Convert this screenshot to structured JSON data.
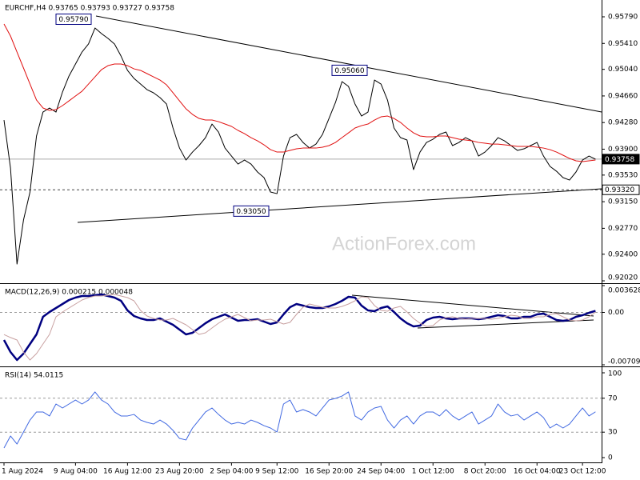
{
  "watermark": "ActionForex.com",
  "chart_data": [
    {
      "type": "line",
      "title": "EURCHF,H4  0.93765 0.93793 0.93727 0.93758",
      "ylim": [
        0.92009,
        0.9603
      ],
      "yticks": [
        {
          "value": 0.9579,
          "label": "0.95790"
        },
        {
          "value": 0.9541,
          "label": "0.95410"
        },
        {
          "value": 0.9504,
          "label": "0.95040"
        },
        {
          "value": 0.9466,
          "label": "0.94660"
        },
        {
          "value": 0.9428,
          "label": "0.94280"
        },
        {
          "value": 0.939,
          "label": "0.93900"
        },
        {
          "value": 0.9353,
          "label": "0.93530"
        },
        {
          "value": 0.9315,
          "label": "0.93150"
        },
        {
          "value": 0.9277,
          "label": "0.92770"
        },
        {
          "value": 0.924,
          "label": "0.92400"
        },
        {
          "value": 0.9202,
          "label": "0.92020"
        }
      ],
      "grid": false,
      "series": [
        {
          "color": "#000000",
          "width": 1,
          "values": [
            0.94316,
            0.93631,
            0.9226,
            0.92888,
            0.93288,
            0.94088,
            0.9443,
            0.94488,
            0.9443,
            0.94716,
            0.94945,
            0.95116,
            0.95287,
            0.95402,
            0.9563,
            0.9555,
            0.95482,
            0.95402,
            0.9523,
            0.95025,
            0.9491,
            0.9483,
            0.9475,
            0.94705,
            0.94636,
            0.94545,
            0.94202,
            0.93916,
            0.93745,
            0.93859,
            0.93951,
            0.94065,
            0.94259,
            0.94145,
            0.93916,
            0.93802,
            0.93688,
            0.93745,
            0.93688,
            0.93574,
            0.93494,
            0.93288,
            0.93265,
            0.93802,
            0.94065,
            0.94111,
            0.93996,
            0.93916,
            0.93973,
            0.94111,
            0.94339,
            0.94568,
            0.94865,
            0.94796,
            0.94545,
            0.94373,
            0.9443,
            0.94887,
            0.9483,
            0.94602,
            0.94202,
            0.94065,
            0.94031,
            0.93608,
            0.93859,
            0.93996,
            0.94042,
            0.94111,
            0.94145,
            0.93951,
            0.93996,
            0.94065,
            0.94019,
            0.93802,
            0.93859,
            0.93951,
            0.94065,
            0.94019,
            0.93951,
            0.93882,
            0.93905,
            0.93951,
            0.93996,
            0.93802,
            0.93654,
            0.93585,
            0.93494,
            0.93459,
            0.93574,
            0.93745,
            0.93802,
            0.93758
          ]
        },
        {
          "color": "#e01010",
          "width": 1,
          "values": [
            0.95687,
            0.95516,
            0.95287,
            0.95059,
            0.9483,
            0.94602,
            0.94488,
            0.94453,
            0.94465,
            0.94522,
            0.9459,
            0.94659,
            0.94727,
            0.9483,
            0.94933,
            0.95036,
            0.95093,
            0.95116,
            0.95116,
            0.95093,
            0.95047,
            0.95025,
            0.94979,
            0.94933,
            0.94887,
            0.94819,
            0.94705,
            0.9459,
            0.94476,
            0.94396,
            0.94339,
            0.94316,
            0.94316,
            0.94293,
            0.94259,
            0.94225,
            0.94168,
            0.94122,
            0.94065,
            0.94019,
            0.93962,
            0.93893,
            0.93859,
            0.93859,
            0.93882,
            0.93905,
            0.93916,
            0.93916,
            0.93916,
            0.93928,
            0.93951,
            0.93996,
            0.94065,
            0.94133,
            0.94202,
            0.94236,
            0.94259,
            0.94316,
            0.94362,
            0.94373,
            0.94339,
            0.94282,
            0.94202,
            0.94133,
            0.94088,
            0.94076,
            0.94076,
            0.94088,
            0.94088,
            0.94065,
            0.94042,
            0.94031,
            0.94019,
            0.93996,
            0.93985,
            0.93973,
            0.93973,
            0.93962,
            0.93951,
            0.93939,
            0.93939,
            0.93939,
            0.93928,
            0.93916,
            0.93893,
            0.93859,
            0.93814,
            0.93768,
            0.93734,
            0.93722,
            0.93734,
            0.93745
          ]
        }
      ],
      "annotations": [
        {
          "value": 0.9579,
          "label": "0.95790"
        },
        {
          "value": 0.9506,
          "label": "0.95060"
        },
        {
          "value": 0.9305,
          "label": "0.93050"
        }
      ],
      "levels": [
        {
          "value": 0.93758,
          "label": "0.93758",
          "style": "solid",
          "highlight": true
        },
        {
          "value": 0.9332,
          "label": "0.93320",
          "style": "dashed",
          "highlight": false
        }
      ]
    },
    {
      "type": "line",
      "title": "MACD(12,26,9) 0.000215 0.000048",
      "ylim": [
        -0.007093,
        0.003628
      ],
      "yticks": [
        0.003628,
        {
          "value": 0,
          "label": "0.00"
        },
        -0.007093
      ],
      "grid": true,
      "series": [
        {
          "color": "#000080",
          "width": 2.5,
          "values": [
            -0.003736,
            -0.005361,
            -0.006444,
            -0.005577,
            -0.004278,
            -0.002978,
            -0.000596,
            5.4e-05,
            0.000596,
            0.001137,
            0.001679,
            0.002004,
            0.00222,
            0.00222,
            0.002328,
            0.002437,
            0.00222,
            0.002004,
            0.00157,
            0.000271,
            -0.000487,
            -0.000812,
            -0.001029,
            -0.001029,
            -0.000812,
            -0.001245,
            -0.001679,
            -0.002328,
            -0.002978,
            -0.002762,
            -0.002112,
            -0.001462,
            -0.000921,
            -0.000596,
            -0.000271,
            -0.000704,
            -0.001137,
            -0.001029,
            -0.001029,
            -0.000921,
            -0.001245,
            -0.00157,
            -0.001354,
            -0.000271,
            0.000704,
            0.001137,
            0.000921,
            0.000704,
            0.000596,
            0.000596,
            0.000812,
            0.001137,
            0.00157,
            0.002112,
            0.002004,
            0.000921,
            0.000271,
            0.000162,
            0.000596,
            0.000812,
            5.4e-05,
            -0.000812,
            -0.001462,
            -0.001895,
            -0.001787,
            -0.001029,
            -0.000704,
            -0.000596,
            -0.000812,
            -0.000921,
            -0.000812,
            -0.000812,
            -0.000812,
            -0.000921,
            -0.000812,
            -0.000596,
            -0.000379,
            -0.000487,
            -0.000812,
            -0.000812,
            -0.000596,
            -0.000596,
            -0.000271,
            -0.000162,
            -0.000596,
            -0.001029,
            -0.001137,
            -0.001029,
            -0.000596,
            -0.000379,
            -5.4e-05,
            0.000215
          ]
        },
        {
          "color": "#c8a0a0",
          "width": 1,
          "values": [
            -0.003,
            -0.0034,
            -0.003736,
            -0.005361,
            -0.006444,
            -0.005577,
            -0.004278,
            -0.002978,
            -0.000596,
            5.4e-05,
            0.000596,
            0.001137,
            0.001679,
            0.002004,
            0.00222,
            0.00222,
            0.002328,
            0.002437,
            0.00222,
            0.002004,
            0.00157,
            0.000271,
            -0.000487,
            -0.000812,
            -0.001029,
            -0.001029,
            -0.000812,
            -0.001245,
            -0.001679,
            -0.002328,
            -0.002978,
            -0.002762,
            -0.002112,
            -0.001462,
            -0.000921,
            -0.000596,
            -0.000271,
            -0.000704,
            -0.001137,
            -0.001029,
            -0.001029,
            -0.000921,
            -0.001245,
            -0.00157,
            -0.001354,
            -0.000271,
            0.000704,
            0.001137,
            0.000921,
            0.000704,
            0.000596,
            0.000596,
            0.000812,
            0.001137,
            0.00157,
            0.002112,
            0.002004,
            0.000921,
            0.000271,
            0.000162,
            0.000596,
            0.000812,
            5.4e-05,
            -0.000812,
            -0.001462,
            -0.001895,
            -0.001787,
            -0.001029,
            -0.000704,
            -0.000596,
            -0.000812,
            -0.000921,
            -0.000812,
            -0.000812,
            -0.000812,
            -0.000921,
            -0.000812,
            -0.000596,
            -0.000379,
            -0.000487,
            -0.000812,
            -0.000812,
            -0.000596,
            -0.000596,
            -0.000271,
            -0.000162,
            -0.000596,
            -0.001029,
            -0.001137,
            -0.001029,
            -0.000596,
            4.8e-05
          ]
        }
      ]
    },
    {
      "type": "line",
      "title": "RSI(14) 54.0115",
      "ylim": [
        0,
        100
      ],
      "yticks": [
        100,
        70,
        30,
        0
      ],
      "grid": true,
      "categories": [
        "1 Aug 2024",
        null,
        null,
        null,
        null,
        null,
        null,
        null,
        null,
        null,
        null,
        "9 Aug 04:00",
        null,
        null,
        null,
        null,
        null,
        null,
        null,
        "16 Aug 12:00",
        null,
        null,
        null,
        null,
        null,
        null,
        null,
        "23 Aug 20:00",
        null,
        null,
        null,
        null,
        null,
        null,
        null,
        "2 Sep 04:00",
        null,
        null,
        null,
        null,
        null,
        null,
        "9 Sep 12:00",
        null,
        null,
        null,
        null,
        null,
        null,
        null,
        "16 Sep 20:00",
        null,
        null,
        null,
        null,
        null,
        null,
        null,
        "24 Sep 04:00",
        null,
        null,
        null,
        null,
        null,
        null,
        null,
        "1 Oct 12:00",
        null,
        null,
        null,
        null,
        null,
        null,
        null,
        "8 Oct 20:00",
        null,
        null,
        null,
        null,
        null,
        null,
        null,
        "16 Oct 04:00",
        null,
        null,
        null,
        null,
        null,
        null,
        "23 Oct 12:00",
        null,
        null
      ],
      "series": [
        {
          "color": "#4169e1",
          "width": 1,
          "values": [
            11.3,
            25.5,
            16.0,
            30.2,
            44.3,
            53.8,
            53.8,
            49.1,
            63.2,
            58.5,
            63.2,
            67.9,
            63.2,
            67.9,
            77.4,
            67.9,
            63.2,
            53.8,
            49.1,
            49.1,
            50.9,
            44.3,
            41.5,
            39.6,
            44.3,
            39.6,
            32.1,
            22.6,
            20.8,
            34.9,
            44.3,
            53.8,
            58.5,
            50.9,
            44.3,
            39.6,
            41.5,
            39.6,
            44.3,
            41.5,
            37.7,
            34.9,
            30.2,
            63.2,
            67.9,
            53.8,
            56.6,
            53.8,
            49.1,
            58.5,
            67.9,
            69.8,
            72.6,
            77.4,
            49.1,
            44.3,
            53.8,
            58.5,
            60.4,
            44.3,
            34.9,
            44.3,
            49.1,
            39.6,
            49.1,
            53.8,
            53.8,
            49.1,
            56.6,
            49.1,
            44.3,
            49.1,
            53.8,
            39.6,
            44.3,
            49.1,
            63.2,
            53.8,
            49.1,
            50.9,
            44.3,
            49.1,
            53.8,
            47.2,
            34.9,
            39.6,
            34.9,
            39.6,
            49.1,
            58.5,
            49.1,
            54.0115
          ]
        }
      ]
    }
  ]
}
